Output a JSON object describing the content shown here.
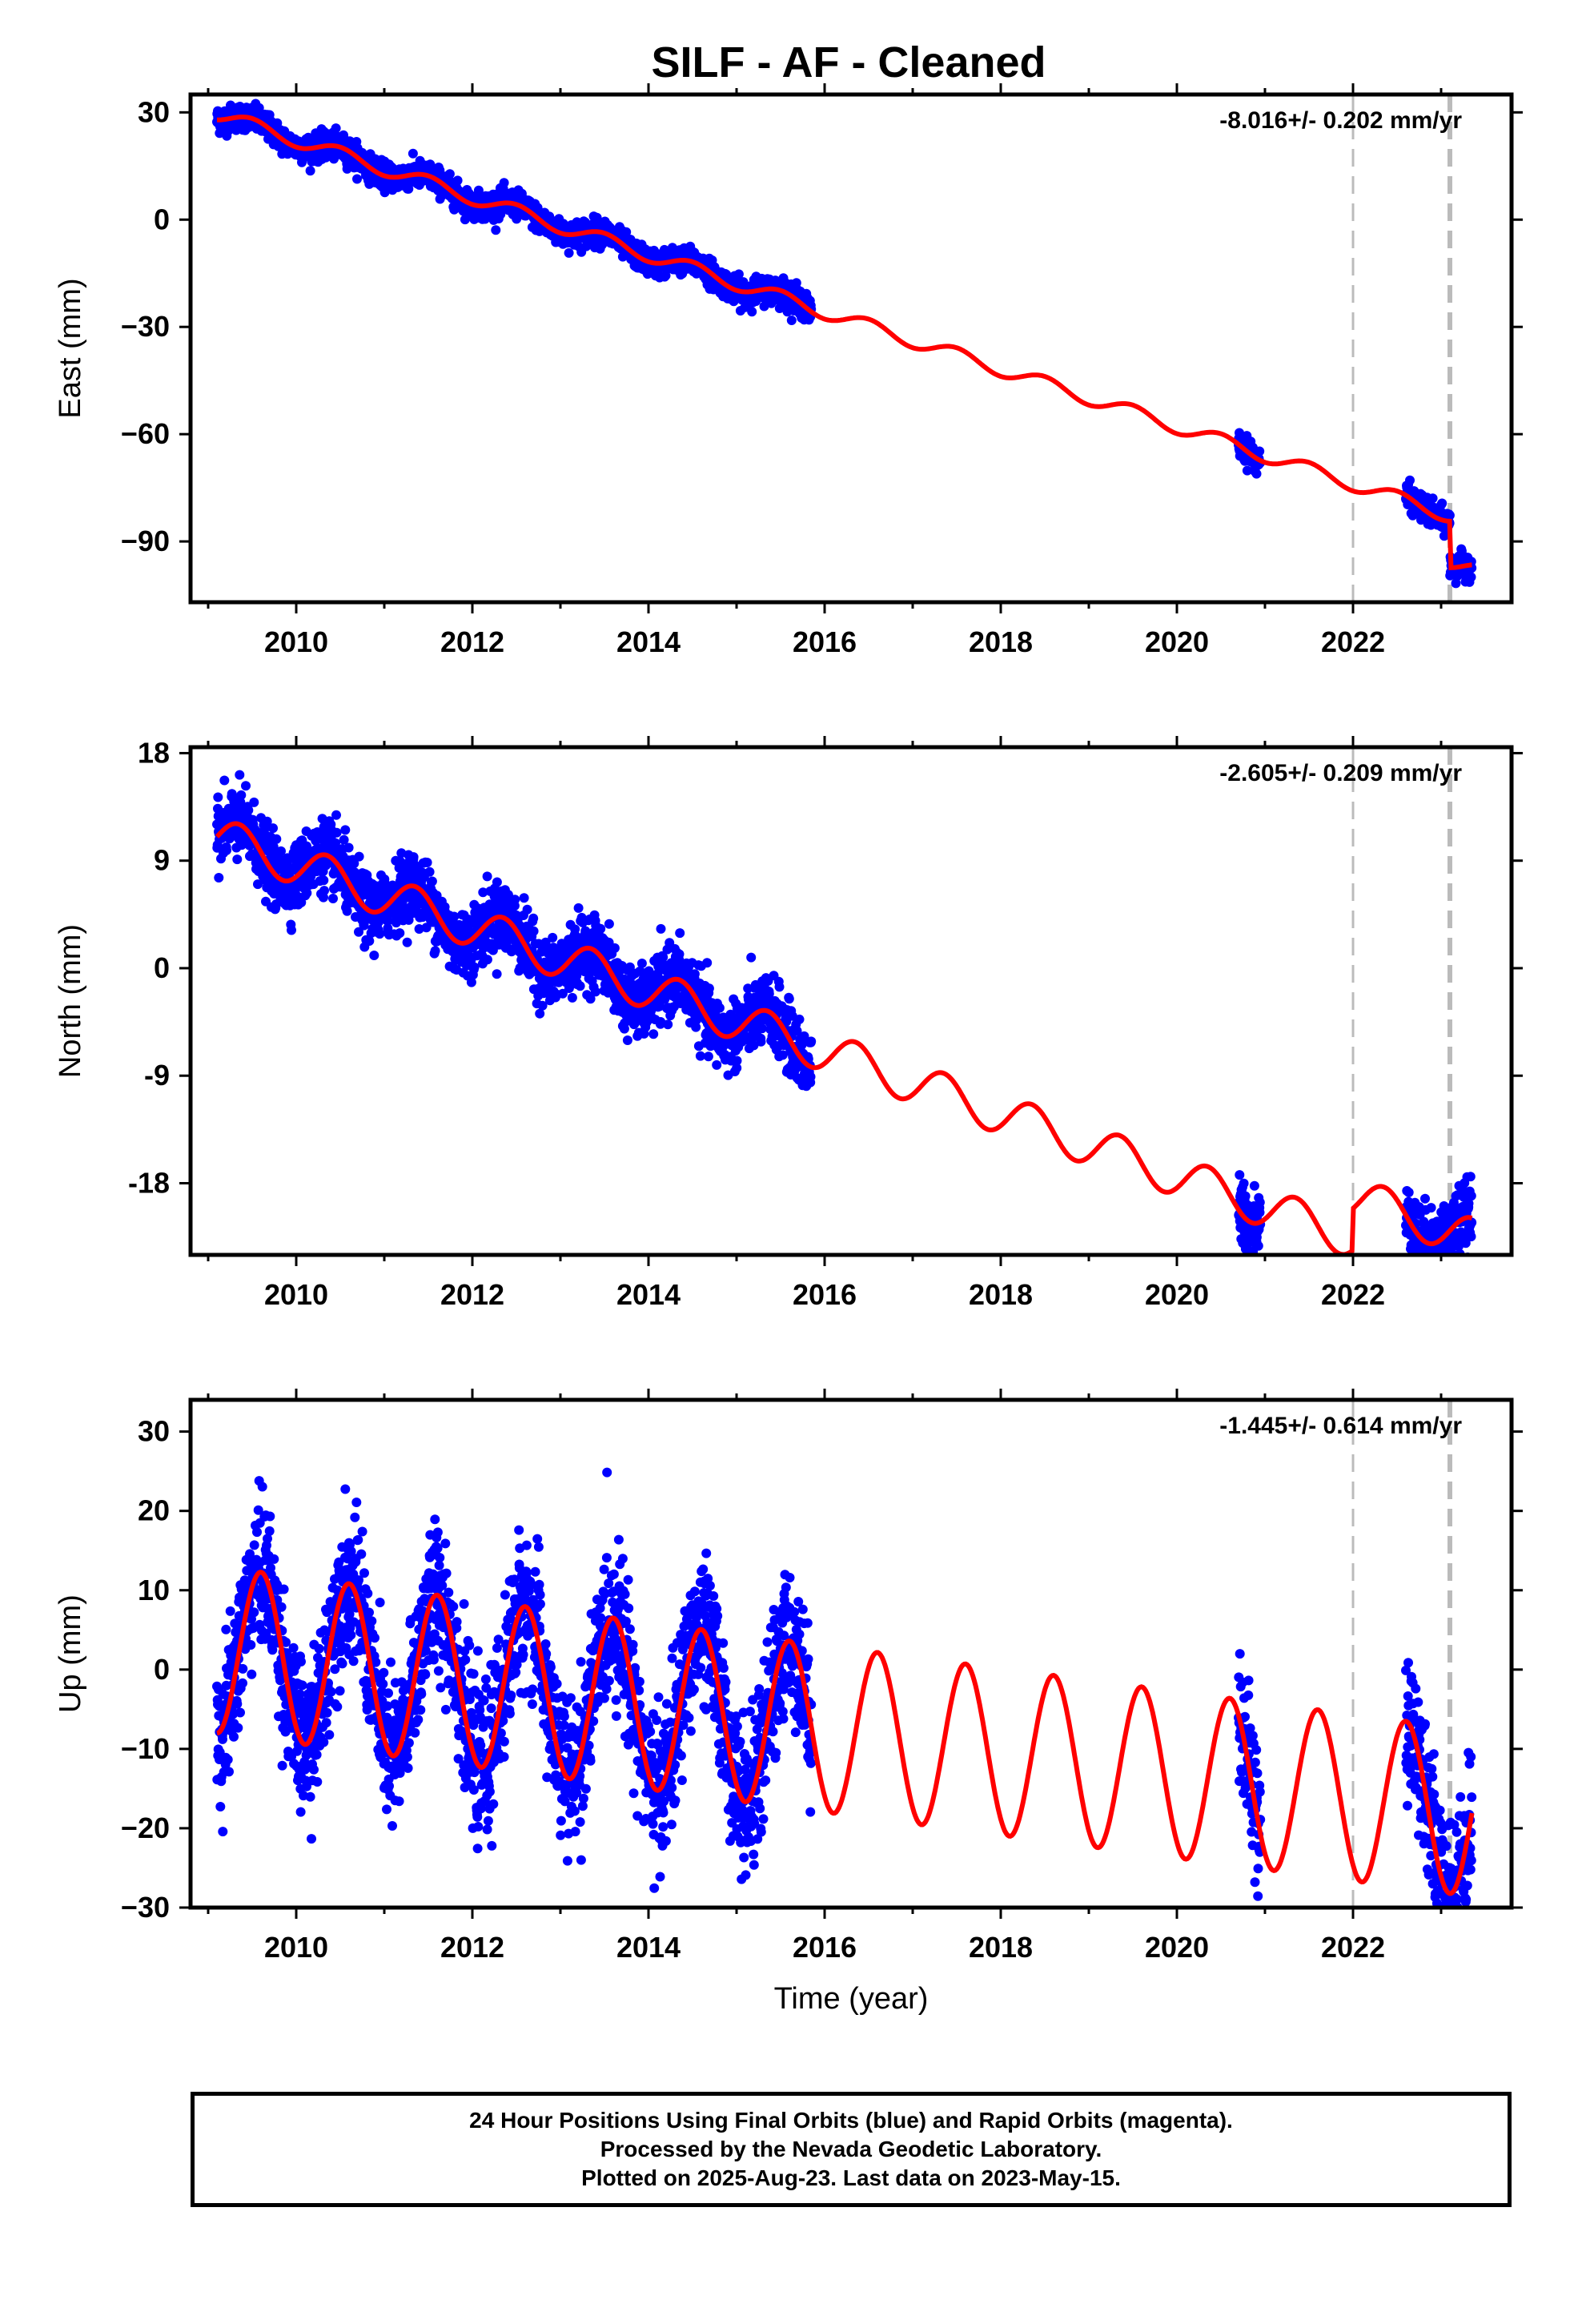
{
  "page": {
    "title": "SILF  - AF - Cleaned",
    "footer_lines": [
      "24 Hour Positions Using Final Orbits (blue) and Rapid Orbits (magenta).",
      "Processed by the Nevada Geodetic Laboratory.",
      "Plotted on 2025-Aug-23. Last data on 2023-May-15."
    ],
    "colors": {
      "data": "#0000ff",
      "model": "#ff0000",
      "event_line": "#bbbbbb",
      "frame": "#000000"
    }
  },
  "chart_data": [
    {
      "type": "scatter",
      "name": "east",
      "ylabel": "East (mm)",
      "xlabel": "",
      "xlim": [
        2008.8,
        2023.8
      ],
      "ylim": [
        -107,
        35
      ],
      "yticks": [
        30,
        0,
        -30,
        -60,
        -90
      ],
      "ytick_labels": [
        "30",
        "0",
        "−30",
        "−60",
        "−90"
      ],
      "xticks": [
        2010,
        2012,
        2014,
        2016,
        2018,
        2020,
        2022
      ],
      "rate_label": "-8.016+/- 0.202 mm/yr",
      "event_lines": [
        2022.0,
        2023.1
      ],
      "data_segments": [
        [
          2009.1,
          2015.85
        ],
        [
          2020.7,
          2020.95
        ],
        [
          2022.6,
          2023.35
        ]
      ],
      "model": {
        "rate": -8.016,
        "ref_year": 2009.1,
        "offset": 29.5,
        "annual_amp": 2.0,
        "annual_phase": 0.25,
        "scatter": 1.8,
        "steps": [
          {
            "t": 2023.1,
            "dy": -13
          }
        ]
      }
    },
    {
      "type": "scatter",
      "name": "north",
      "ylabel": "North (mm)",
      "xlabel": "",
      "xlim": [
        2008.8,
        2023.8
      ],
      "ylim": [
        -24,
        18.5
      ],
      "yticks": [
        18,
        9,
        0,
        -9,
        -18
      ],
      "ytick_labels": [
        "18",
        "9",
        "0",
        "-9",
        "-18"
      ],
      "xticks": [
        2010,
        2012,
        2014,
        2016,
        2018,
        2020,
        2022
      ],
      "rate_label": "-2.605+/- 0.209 mm/yr",
      "event_lines": [
        2022.0,
        2023.1
      ],
      "data_segments": [
        [
          2009.1,
          2015.85
        ],
        [
          2020.7,
          2020.95
        ],
        [
          2022.6,
          2023.35
        ]
      ],
      "model": {
        "rate": -2.605,
        "ref_year": 2009.1,
        "offset": 11.0,
        "annual_amp": 1.7,
        "annual_phase": 0.1,
        "scatter": 1.4,
        "steps": [
          {
            "t": 2022.0,
            "dy": 3.5
          }
        ]
      }
    },
    {
      "type": "scatter",
      "name": "up",
      "ylabel": "Up (mm)",
      "xlabel": "Time (year)",
      "xlim": [
        2008.8,
        2023.8
      ],
      "ylim": [
        -30,
        34
      ],
      "yticks": [
        30,
        20,
        10,
        0,
        -10,
        -20,
        -30
      ],
      "ytick_labels": [
        "30",
        "20",
        "10",
        "0",
        "−10",
        "−20",
        "−30"
      ],
      "xticks": [
        2010,
        2012,
        2014,
        2016,
        2018,
        2020,
        2022
      ],
      "rate_label": "-1.445+/- 0.614 mm/yr",
      "event_lines": [
        2022.0,
        2023.1
      ],
      "data_segments": [
        [
          2009.1,
          2015.85
        ],
        [
          2020.7,
          2020.95
        ],
        [
          2022.6,
          2023.35
        ]
      ],
      "model": {
        "rate": -1.445,
        "ref_year": 2009.1,
        "offset": 2.5,
        "annual_amp": 10.5,
        "annual_phase": 0.35,
        "scatter": 4.5,
        "steps": []
      }
    }
  ]
}
